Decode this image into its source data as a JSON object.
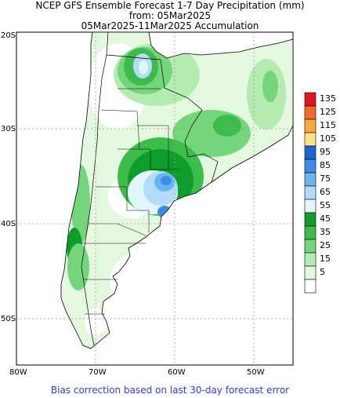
{
  "header": {
    "title": "NCEP GFS Ensemble Forecast 1-7 Day Precipitation (mm)",
    "subtitle_from": "from: 05Mar2025",
    "subtitle_period": "05Mar2025-11Mar2025 Accumulation"
  },
  "axes": {
    "lat_labels": [
      "20S",
      "30S",
      "40S",
      "50S"
    ],
    "lon_labels": [
      "80W",
      "70W",
      "60W",
      "50W"
    ]
  },
  "legend": {
    "levels": [
      {
        "label": "135",
        "color": "#e0141e"
      },
      {
        "label": "125",
        "color": "#f36b26"
      },
      {
        "label": "115",
        "color": "#f9a93b"
      },
      {
        "label": "105",
        "color": "#fde28a"
      },
      {
        "label": "95",
        "color": "#1d64d4"
      },
      {
        "label": "85",
        "color": "#3a8ee8"
      },
      {
        "label": "75",
        "color": "#6bb4f2"
      },
      {
        "label": "65",
        "color": "#b2dcf8"
      },
      {
        "label": "55",
        "color": "#e0f6fb"
      },
      {
        "label": "45",
        "color": "#0e9c2a"
      },
      {
        "label": "35",
        "color": "#3cbd4b"
      },
      {
        "label": "25",
        "color": "#74d57a"
      },
      {
        "label": "15",
        "color": "#b4ebb0"
      },
      {
        "label": "5",
        "color": "#e3f8df"
      },
      {
        "label": "",
        "color": "#ffffff"
      }
    ]
  },
  "footer": {
    "note": "Bias correction based on last 30-day forecast error"
  }
}
